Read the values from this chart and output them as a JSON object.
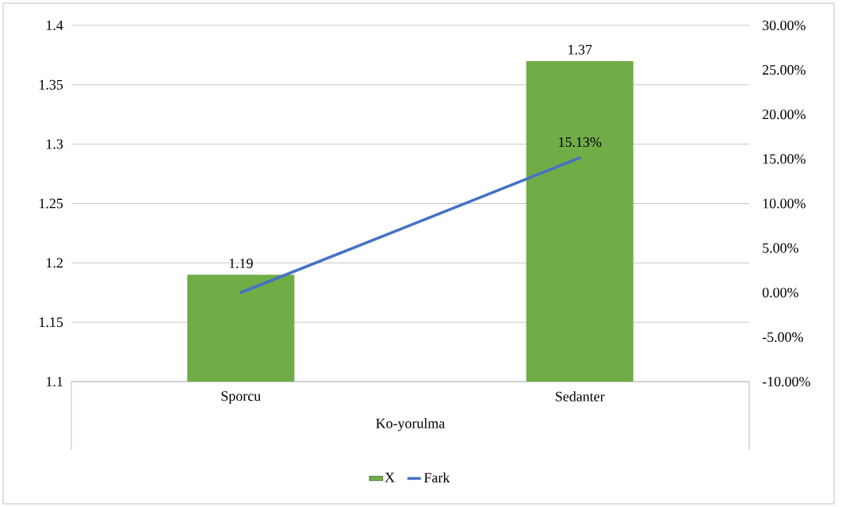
{
  "chart_data": {
    "type": "bar",
    "xlabel": "Ko-yorulma",
    "categories": [
      "Sporcu",
      "Sedanter"
    ],
    "series": [
      {
        "name": "X",
        "color": "#70ad47",
        "values": [
          1.19,
          1.37
        ],
        "value_labels": [
          "1.19",
          "1.37"
        ]
      },
      {
        "name": "Fark",
        "type": "line",
        "axis": "y2",
        "color": "#4472c4",
        "values": [
          0,
          15.13
        ],
        "value_labels": [
          null,
          "15.13%"
        ]
      }
    ],
    "ylim": [
      1.1,
      1.4
    ],
    "yticks": [
      1.1,
      1.15,
      1.2,
      1.25,
      1.3,
      1.35,
      1.4
    ],
    "y2lim": [
      -10,
      30
    ],
    "y2ticks": [
      {
        "value": -10,
        "label": "-10.00%"
      },
      {
        "value": -5,
        "label": "-5.00%"
      },
      {
        "value": 0,
        "label": "0.00%"
      },
      {
        "value": 5,
        "label": "5.00%"
      },
      {
        "value": 10,
        "label": "10.00%"
      },
      {
        "value": 15,
        "label": "15.00%"
      },
      {
        "value": 20,
        "label": "20.00%"
      },
      {
        "value": 25,
        "label": "25.00%"
      },
      {
        "value": 30,
        "label": "30.00%"
      }
    ],
    "grid": "y",
    "legend": "bottom",
    "marker": "none"
  }
}
